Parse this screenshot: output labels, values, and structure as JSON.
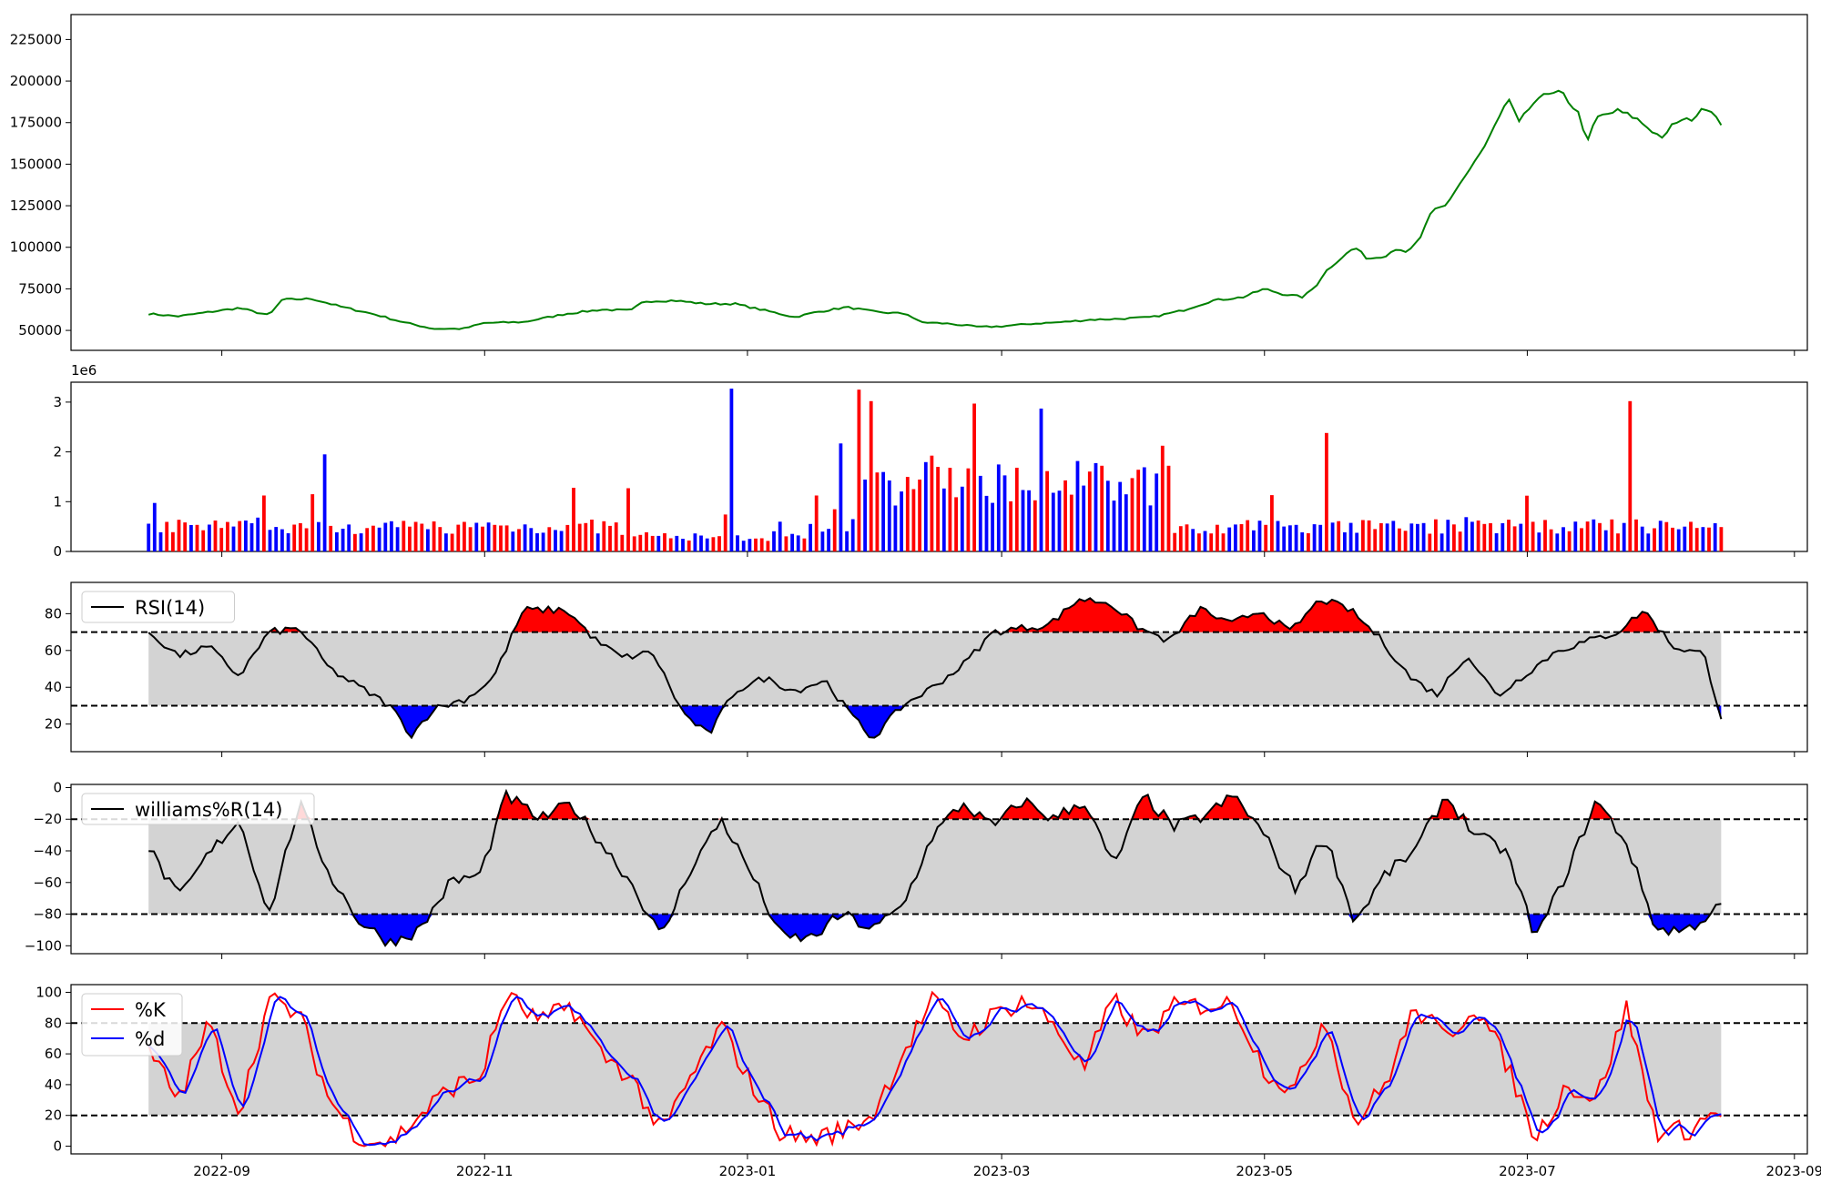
{
  "colors": {
    "price_line": "#008000",
    "volume_up": "#ff0000",
    "volume_down": "#0000ff",
    "overbought_fill": "#ff0000",
    "oversold_fill": "#0000ff",
    "band_fill": "#d3d3d3",
    "indicator_line": "#000000",
    "k_line": "#ff0000",
    "d_line": "#0000ff"
  },
  "x_axis": {
    "tick_dates": [
      "2022-09-01",
      "2022-11-01",
      "2023-01-01",
      "2023-03-01",
      "2023-05-01",
      "2023-07-01",
      "2023-09-01"
    ],
    "tick_labels": [
      "2022-09",
      "2022-11",
      "2023-01",
      "2023-03",
      "2023-05",
      "2023-07",
      "2023-09"
    ],
    "date_range": [
      "2022-07-28",
      "2023-09-04"
    ]
  },
  "chart_data": [
    {
      "type": "line",
      "panel": "price",
      "x_range": [
        "2022-08-15",
        "2023-08-15"
      ],
      "y_ticks": [
        50000,
        75000,
        100000,
        125000,
        150000,
        175000,
        200000,
        225000
      ],
      "y_tick_labels": [
        "50000",
        "75000",
        "100000",
        "125000",
        "150000",
        "175000",
        "200000",
        "225000"
      ],
      "ylim": [
        38000,
        240000
      ],
      "series_points": [
        [
          "2022-08-15",
          60000
        ],
        [
          "2022-08-22",
          58500
        ],
        [
          "2022-08-29",
          61000
        ],
        [
          "2022-09-05",
          63500
        ],
        [
          "2022-09-12",
          59000
        ],
        [
          "2022-09-15",
          68500
        ],
        [
          "2022-09-22",
          69000
        ],
        [
          "2022-09-29",
          64000
        ],
        [
          "2022-10-06",
          60000
        ],
        [
          "2022-10-13",
          55000
        ],
        [
          "2022-10-20",
          51000
        ],
        [
          "2022-10-27",
          51000
        ],
        [
          "2022-11-01",
          54500
        ],
        [
          "2022-11-10",
          55000
        ],
        [
          "2022-11-20",
          60000
        ],
        [
          "2022-11-28",
          62500
        ],
        [
          "2022-12-05",
          62000
        ],
        [
          "2022-12-08",
          67500
        ],
        [
          "2022-12-15",
          68000
        ],
        [
          "2022-12-22",
          66000
        ],
        [
          "2022-12-29",
          66000
        ],
        [
          "2023-01-05",
          62000
        ],
        [
          "2023-01-12",
          58000
        ],
        [
          "2023-01-17",
          61000
        ],
        [
          "2023-01-24",
          64000
        ],
        [
          "2023-01-31",
          61000
        ],
        [
          "2023-02-07",
          60000
        ],
        [
          "2023-02-10",
          55000
        ],
        [
          "2023-02-17",
          54000
        ],
        [
          "2023-02-24",
          52000
        ],
        [
          "2023-03-01",
          52500
        ],
        [
          "2023-03-08",
          54000
        ],
        [
          "2023-03-15",
          55000
        ],
        [
          "2023-03-22",
          56500
        ],
        [
          "2023-03-29",
          57000
        ],
        [
          "2023-04-05",
          58000
        ],
        [
          "2023-04-12",
          62000
        ],
        [
          "2023-04-19",
          68000
        ],
        [
          "2023-04-26",
          70000
        ],
        [
          "2023-05-01",
          75000
        ],
        [
          "2023-05-05",
          72000
        ],
        [
          "2023-05-10",
          70000
        ],
        [
          "2023-05-13",
          77000
        ],
        [
          "2023-05-15",
          85000
        ],
        [
          "2023-05-18",
          92000
        ],
        [
          "2023-05-22",
          100000
        ],
        [
          "2023-05-25",
          93000
        ],
        [
          "2023-05-29",
          95000
        ],
        [
          "2023-06-01",
          100000
        ],
        [
          "2023-06-03",
          96000
        ],
        [
          "2023-06-06",
          105000
        ],
        [
          "2023-06-09",
          122000
        ],
        [
          "2023-06-12",
          125000
        ],
        [
          "2023-06-15",
          137000
        ],
        [
          "2023-06-18",
          148000
        ],
        [
          "2023-06-21",
          160000
        ],
        [
          "2023-06-24",
          175000
        ],
        [
          "2023-06-27",
          190000
        ],
        [
          "2023-06-29",
          174000
        ],
        [
          "2023-07-03",
          190000
        ],
        [
          "2023-07-09",
          193000
        ],
        [
          "2023-07-13",
          180000
        ],
        [
          "2023-07-15",
          163000
        ],
        [
          "2023-07-17",
          178000
        ],
        [
          "2023-07-22",
          182000
        ],
        [
          "2023-07-26",
          178000
        ],
        [
          "2023-07-31",
          168000
        ],
        [
          "2023-08-02",
          166000
        ],
        [
          "2023-08-04",
          175000
        ],
        [
          "2023-08-08",
          177000
        ],
        [
          "2023-08-12",
          185000
        ],
        [
          "2023-08-15",
          175000
        ]
      ]
    },
    {
      "type": "bar",
      "panel": "volume",
      "y_ticks": [
        0,
        1,
        2,
        3
      ],
      "y_tick_labels": [
        "0",
        "1",
        "2",
        "3"
      ],
      "multiplier_label": "1e6",
      "ylim": [
        0,
        3.4
      ],
      "note_units": "millions"
    },
    {
      "type": "line",
      "panel": "rsi",
      "series": [
        {
          "name": "RSI(14)"
        }
      ],
      "y_ticks": [
        20,
        40,
        60,
        80
      ],
      "y_tick_labels": [
        "20",
        "40",
        "60",
        "80"
      ],
      "ylim": [
        5,
        97
      ],
      "thresholds": [
        30,
        70
      ]
    },
    {
      "type": "line",
      "panel": "williams",
      "series": [
        {
          "name": "williams%R(14)"
        }
      ],
      "y_ticks": [
        -100,
        -80,
        -60,
        -40,
        -20,
        0
      ],
      "y_tick_labels": [
        "−100",
        "−80",
        "−60",
        "−40",
        "−20",
        "0"
      ],
      "ylim": [
        -105,
        2
      ],
      "thresholds": [
        -80,
        -20
      ]
    },
    {
      "type": "line",
      "panel": "stochastic",
      "series": [
        {
          "name": "%K"
        },
        {
          "name": "%d"
        }
      ],
      "y_ticks": [
        0,
        20,
        40,
        60,
        80,
        100
      ],
      "y_tick_labels": [
        "0",
        "20",
        "40",
        "60",
        "80",
        "100"
      ],
      "ylim": [
        -5,
        105
      ],
      "thresholds": [
        20,
        80
      ]
    }
  ]
}
